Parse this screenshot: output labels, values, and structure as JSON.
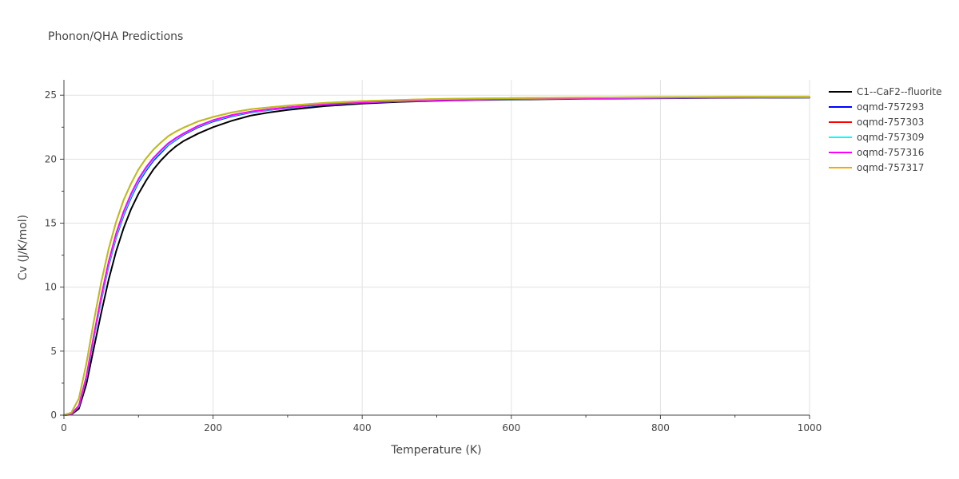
{
  "chart_data": {
    "type": "line",
    "title": "Phonon/QHA Predictions",
    "xlabel": "Temperature (K)",
    "ylabel": "Cv (J/K/mol)",
    "xlim": [
      0,
      1000
    ],
    "ylim": [
      0,
      26.2
    ],
    "xticks": [
      0,
      200,
      400,
      600,
      800,
      1000
    ],
    "yticks": [
      0,
      5,
      10,
      15,
      20,
      25
    ],
    "grid": true,
    "legend_position": "top-right",
    "series": [
      {
        "name": "C1--CaF2--fluorite",
        "color": "#000000",
        "x": [
          0,
          10,
          20,
          30,
          40,
          50,
          60,
          70,
          80,
          90,
          100,
          110,
          120,
          130,
          140,
          150,
          160,
          180,
          200,
          225,
          250,
          275,
          300,
          350,
          400,
          450,
          500,
          550,
          600,
          700,
          800,
          900,
          1000
        ],
        "y": [
          0,
          0.05,
          0.5,
          2.4,
          5.2,
          8.0,
          10.6,
          12.8,
          14.6,
          16.1,
          17.3,
          18.3,
          19.2,
          19.9,
          20.5,
          21.0,
          21.4,
          22.0,
          22.5,
          23.0,
          23.4,
          23.65,
          23.85,
          24.15,
          24.35,
          24.48,
          24.56,
          24.62,
          24.66,
          24.72,
          24.76,
          24.79,
          24.81
        ]
      },
      {
        "name": "oqmd-757293",
        "color": "#0000ff",
        "x": [
          0,
          10,
          20,
          30,
          40,
          50,
          60,
          70,
          80,
          90,
          100,
          110,
          120,
          130,
          140,
          150,
          160,
          180,
          200,
          225,
          250,
          275,
          300,
          350,
          400,
          450,
          500,
          550,
          600,
          700,
          800,
          900,
          1000
        ],
        "y": [
          0,
          0.08,
          0.7,
          2.9,
          6.0,
          9.0,
          11.7,
          13.9,
          15.6,
          17.0,
          18.2,
          19.1,
          19.9,
          20.5,
          21.1,
          21.5,
          21.9,
          22.5,
          22.95,
          23.35,
          23.65,
          23.85,
          24.0,
          24.25,
          24.42,
          24.52,
          24.59,
          24.64,
          24.68,
          24.74,
          24.78,
          24.8,
          24.82
        ]
      },
      {
        "name": "oqmd-757303",
        "color": "#ff0000",
        "x": [
          0,
          10,
          20,
          30,
          40,
          50,
          60,
          70,
          80,
          90,
          100,
          110,
          120,
          130,
          140,
          150,
          160,
          180,
          200,
          225,
          250,
          275,
          300,
          350,
          400,
          450,
          500,
          550,
          600,
          700,
          800,
          900,
          1000
        ],
        "y": [
          0,
          0.08,
          0.7,
          2.9,
          6.0,
          9.1,
          11.8,
          14.0,
          15.7,
          17.1,
          18.3,
          19.2,
          20.0,
          20.6,
          21.15,
          21.55,
          21.95,
          22.55,
          23.0,
          23.4,
          23.68,
          23.87,
          24.02,
          24.27,
          24.43,
          24.53,
          24.6,
          24.65,
          24.69,
          24.75,
          24.79,
          24.81,
          24.83
        ]
      },
      {
        "name": "oqmd-757309",
        "color": "#00ffff",
        "x": [
          0,
          10,
          20,
          30,
          40,
          50,
          60,
          70,
          80,
          90,
          100,
          110,
          120,
          130,
          140,
          150,
          160,
          180,
          200,
          225,
          250,
          275,
          300,
          350,
          400,
          450,
          500,
          550,
          600,
          700,
          800,
          900,
          1000
        ],
        "y": [
          0,
          0.08,
          0.7,
          2.9,
          6.0,
          9.1,
          11.8,
          14.0,
          15.7,
          17.1,
          18.3,
          19.2,
          20.0,
          20.6,
          21.15,
          21.55,
          21.95,
          22.55,
          23.0,
          23.4,
          23.68,
          23.87,
          24.02,
          24.27,
          24.43,
          24.53,
          24.6,
          24.65,
          24.69,
          24.75,
          24.79,
          24.81,
          24.83
        ]
      },
      {
        "name": "oqmd-757316",
        "color": "#ff00ff",
        "x": [
          0,
          10,
          20,
          30,
          40,
          50,
          60,
          70,
          80,
          90,
          100,
          110,
          120,
          130,
          140,
          150,
          160,
          180,
          200,
          225,
          250,
          275,
          300,
          350,
          400,
          450,
          500,
          550,
          600,
          700,
          800,
          900,
          1000
        ],
        "y": [
          0,
          0.09,
          0.75,
          3.0,
          6.2,
          9.3,
          12.0,
          14.2,
          15.9,
          17.3,
          18.45,
          19.35,
          20.1,
          20.7,
          21.25,
          21.65,
          22.0,
          22.6,
          23.05,
          23.45,
          23.72,
          23.9,
          24.05,
          24.29,
          24.44,
          24.54,
          24.61,
          24.66,
          24.7,
          24.76,
          24.8,
          24.82,
          24.84
        ]
      },
      {
        "name": "oqmd-757317",
        "color": "#ffa500",
        "x": [
          0,
          10,
          20,
          30,
          40,
          50,
          60,
          70,
          80,
          90,
          100,
          110,
          120,
          130,
          140,
          150,
          160,
          180,
          200,
          225,
          250,
          275,
          300,
          350,
          400,
          450,
          500,
          550,
          600,
          700,
          800,
          900,
          1000
        ],
        "y": [
          0,
          0.2,
          1.3,
          4.0,
          7.3,
          10.4,
          13.0,
          15.1,
          16.8,
          18.1,
          19.2,
          20.05,
          20.75,
          21.3,
          21.8,
          22.15,
          22.45,
          22.95,
          23.3,
          23.65,
          23.9,
          24.05,
          24.18,
          24.4,
          24.54,
          24.63,
          24.7,
          24.74,
          24.77,
          24.82,
          24.85,
          24.87,
          24.88
        ]
      },
      {
        "name": "",
        "color": "#bcbd22",
        "x": [
          0,
          10,
          20,
          30,
          40,
          50,
          60,
          70,
          80,
          90,
          100,
          110,
          120,
          130,
          140,
          150,
          160,
          180,
          200,
          225,
          250,
          275,
          300,
          350,
          400,
          450,
          500,
          550,
          600,
          700,
          800,
          900,
          1000
        ],
        "y": [
          0,
          0.2,
          1.3,
          4.0,
          7.3,
          10.4,
          13.0,
          15.1,
          16.8,
          18.1,
          19.2,
          20.05,
          20.75,
          21.3,
          21.8,
          22.15,
          22.45,
          22.95,
          23.3,
          23.65,
          23.9,
          24.05,
          24.18,
          24.4,
          24.54,
          24.63,
          24.7,
          24.74,
          24.77,
          24.82,
          24.85,
          24.87,
          24.88
        ]
      }
    ]
  }
}
